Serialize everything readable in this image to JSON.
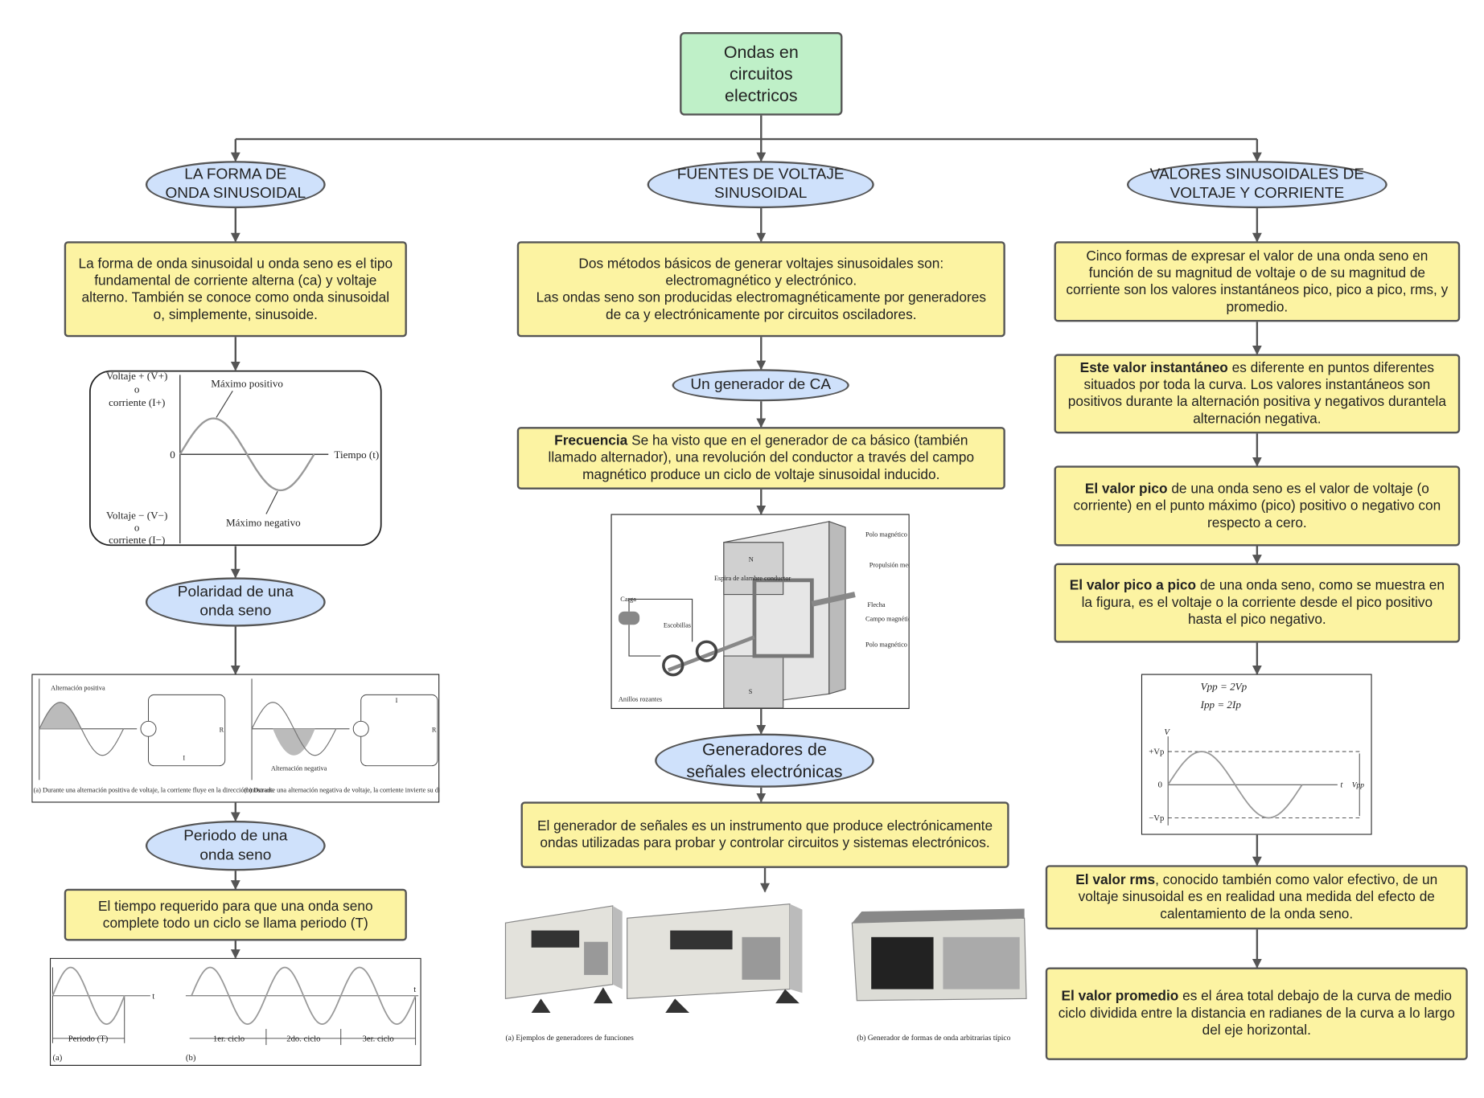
{
  "title": "Ondas en circuitos electricos",
  "columns": [
    {
      "heading": "LA FORMA DE ONDA SINUSOIDAL",
      "intro": "La forma de onda sinusoidal u onda seno es el tipo fundamental de corriente alterna (ca) y voltaje alterno. También se conoce como onda sinusoidal o, simplemente, sinusoide.",
      "sine_figure": [
        "Voltaje + (V+)",
        "o",
        "corriente (I+)",
        "Máximo positivo",
        "0",
        "Tiempo (t)",
        "Voltaje − (V−)",
        "o",
        "corriente (I−)",
        "Máximo negativo"
      ],
      "polarity_heading": "Polaridad de una onda seno",
      "polarity_figure": [
        "Alternación positiva",
        "Alternación negativa",
        "(a) Durante una alternación positiva de voltaje, la corriente fluye en la dirección mostrada",
        "(b) Durante una alternación negativa de voltaje, la corriente invierte su dirección como se muestra",
        "R",
        "R",
        "I",
        "I"
      ],
      "period_heading": "Periodo de una onda seno",
      "period_text": "El tiempo requerido para que una onda seno complete todo un ciclo se llama periodo (T)",
      "period_figure": [
        "Periodo (T)",
        "1er. ciclo",
        "2do. ciclo",
        "3er. ciclo",
        "(a)",
        "(b)",
        "t",
        "t"
      ]
    },
    {
      "heading": "FUENTES DE VOLTAJE SINUSOIDAL",
      "intro": [
        "Dos métodos básicos de generar voltajes sinusoidales son: electromagnético y electrónico.",
        "Las ondas seno son producidas electromagnéticamente por generadores de ca y electrónicamente por circuitos osciladores."
      ],
      "generator_heading": "Un generador de CA",
      "frequency": {
        "bold": "Frecuencia",
        "text": " Se ha visto que en el generador de ca básico (también llamado alternador), una revolución del conductor a través del campo magnético produce un ciclo de voltaje sinusoidal inducido."
      },
      "generator_figure": [
        "Polo magnético",
        "Propulsión mecánica",
        "Espira de alambre conductor",
        "Carga",
        "Escobillas",
        "Flecha",
        "Campo magnético",
        "Polo magnético",
        "Anillos rozantes",
        "N",
        "S"
      ],
      "electronic_heading": "Generadores de señales electrónicas",
      "electronic_text": "El generador de señales es un instrumento que produce electrónicamente ondas utilizadas para probar y controlar circuitos y sistemas electrónicos.",
      "devices_figure": [
        "(a) Ejemplos de generadores de funciones",
        "(b) Generador de formas de onda arbitrarias típico"
      ]
    },
    {
      "heading": "VALORES SINUSOIDALES DE VOLTAJE Y CORRIENTE",
      "intro": "Cinco formas de expresar el valor de una onda seno en función de su magnitud de voltaje o de su magnitud de corriente son los valores instantáneos pico, pico a pico, rms, y promedio.",
      "instantaneous": {
        "bold": "Este valor instantáneo",
        "text": " es diferente en puntos diferentes situados por toda la curva. Los valores instantáneos son positivos durante la alternación positiva y negativos durantela alternación negativa."
      },
      "peak": {
        "bold": "El valor pico",
        "text": " de una onda seno es el valor de voltaje (o corriente) en el punto máximo (pico) positivo o negativo con respecto a cero."
      },
      "peak_to_peak": {
        "bold": "El valor pico a pico",
        "text": " de una onda seno, como se muestra en la figura, es el voltaje o la corriente desde el pico positivo hasta el pico negativo."
      },
      "vpp_figure": [
        "Vpp = 2Vp",
        "Ipp = 2Ip",
        "V",
        "+Vp",
        "0",
        "−Vp",
        "t",
        "Vpp"
      ],
      "rms": {
        "bold": "El valor rms",
        "text": ", conocido también como valor efectivo, de un voltaje sinusoidal es en realidad una medida del efecto de calentamiento de la onda seno."
      },
      "average": {
        "bold": "El valor promedio",
        "text": " es el área total debajo de la curva de medio ciclo dividida entre la distancia en radianes de la curva a lo largo del eje horizontal."
      }
    }
  ]
}
